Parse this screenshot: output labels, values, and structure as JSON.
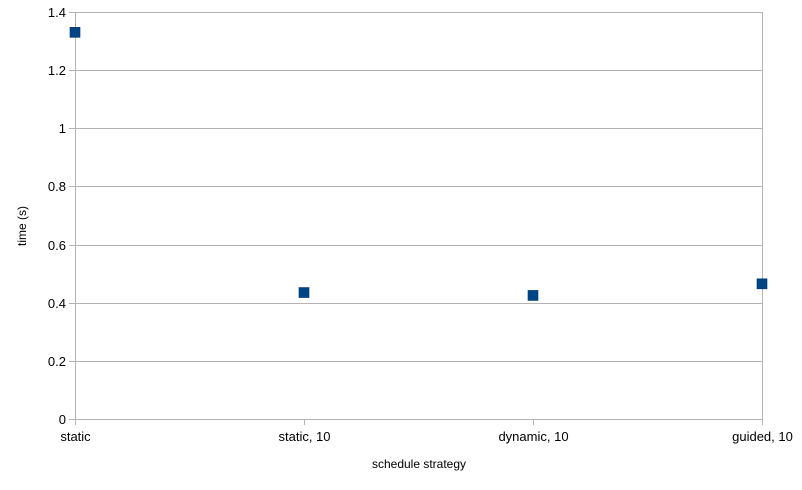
{
  "chart_data": {
    "type": "scatter",
    "categories": [
      "static",
      "static, 10",
      "dynamic, 10",
      "guided, 10"
    ],
    "series": [
      {
        "values": [
          1.33,
          0.435,
          0.425,
          0.465
        ]
      }
    ],
    "title": "",
    "xlabel": "schedule strategy",
    "ylabel": "time (s)",
    "ylim": [
      0,
      1.4
    ],
    "yticks": [
      "0",
      "0.2",
      "0.4",
      "0.6",
      "0.8",
      "1",
      "1.2",
      "1.4"
    ],
    "grid": true,
    "legend": "none",
    "colors": {
      "marker": "#004586",
      "grid": "#b3b3b3",
      "axis": "#b3b3b3"
    }
  }
}
